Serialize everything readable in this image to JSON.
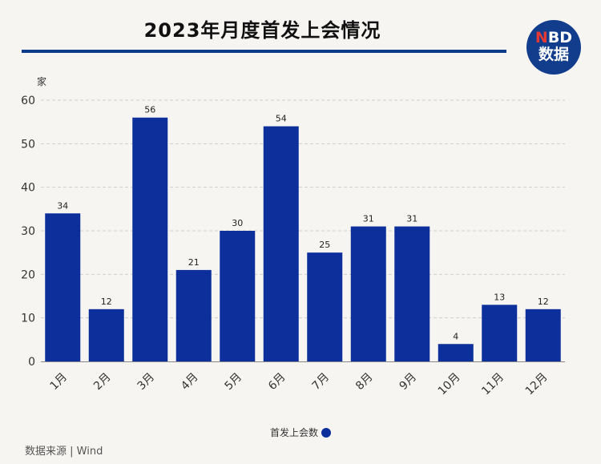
{
  "title": "2023年月度首发上会情况",
  "logo": {
    "line1_accent": "N",
    "line1_rest": "BD",
    "line2": "数据"
  },
  "source": "数据来源 | Wind",
  "colors": {
    "bar": "#0c2f9b",
    "rule": "#0d3c8f",
    "logo_bg": "#123c8c",
    "logo_accent": "#e53935",
    "grid": "#cfcfcf"
  },
  "chart_data": {
    "type": "bar",
    "categories": [
      "1月",
      "2月",
      "3月",
      "4月",
      "5月",
      "6月",
      "7月",
      "8月",
      "9月",
      "10月",
      "11月",
      "12月"
    ],
    "series": [
      {
        "name": "首发上会数",
        "values": [
          34,
          12,
          56,
          21,
          30,
          54,
          25,
          31,
          31,
          4,
          13,
          12
        ]
      }
    ],
    "ylabel": "家",
    "ylim": [
      0,
      60
    ],
    "yticks": [
      0,
      10,
      20,
      30,
      40,
      50,
      60
    ],
    "grid": true,
    "legend_position": "bottom"
  }
}
